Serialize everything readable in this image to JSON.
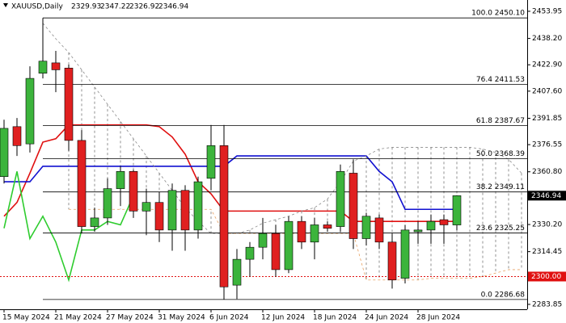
{
  "chart_data": {
    "type": "candlestick",
    "symbol": "XAUUSD,Daily",
    "categories": [
      "15 May 2024",
      null,
      null,
      null,
      "21 May 2024",
      null,
      null,
      null,
      "27 May 2024",
      null,
      null,
      null,
      "31 May 2024",
      null,
      null,
      null,
      "6 Jun 2024",
      null,
      null,
      null,
      "12 Jun 2024",
      null,
      null,
      null,
      "18 Jun 2024",
      null,
      null,
      null,
      "24 Jun 2024",
      null,
      null,
      null,
      "28 Jun 2024",
      null,
      null,
      null,
      null,
      null,
      null,
      null,
      null
    ],
    "open": [
      2358,
      2387,
      2377,
      2418,
      2424,
      2421,
      2379,
      2329,
      2334,
      2351,
      2361,
      2338,
      2343,
      2327,
      2350,
      2327,
      2357,
      2376,
      2295,
      2310,
      2317,
      2325,
      2304,
      2332,
      2320,
      2330,
      2329,
      2360,
      2322,
      2334,
      2320,
      2299,
      2326,
      2327,
      2333,
      2329.93,
      null,
      null,
      null,
      null,
      null
    ],
    "high": [
      2391,
      2392,
      2422,
      2450.1,
      2431,
      2423,
      2385,
      2340,
      2357,
      2364,
      2362,
      2351,
      2349,
      2354,
      2353,
      2358,
      2388,
      2388,
      2316,
      2320,
      2334,
      2330,
      2335,
      2335,
      2334,
      2332,
      2365,
      2368,
      2337,
      2336,
      2325,
      2330,
      2332,
      2336,
      2336,
      2347.22,
      null,
      null,
      null,
      null,
      null
    ],
    "low": [
      2354,
      2370,
      2372,
      2415,
      2407,
      2373,
      2325,
      2326,
      2330,
      2341,
      2334,
      2324,
      2320,
      2315,
      2315,
      2322,
      2350,
      2286.68,
      2287,
      2300,
      2310,
      2300,
      2302,
      2316,
      2310,
      2326,
      2326,
      2316,
      2318,
      2316,
      2293,
      2296,
      2319,
      2319,
      2319,
      2326.92,
      null,
      null,
      null,
      null,
      null
    ],
    "close": [
      2386,
      2376,
      2415,
      2425,
      2420,
      2379,
      2329,
      2334,
      2351,
      2361,
      2338,
      2343,
      2327,
      2350,
      2327,
      2355,
      2376,
      2294,
      2310,
      2317,
      2325,
      2304,
      2332,
      2320,
      2330,
      2328,
      2361,
      2322,
      2335,
      2320,
      2298,
      2327,
      2327,
      2332,
      2330,
      2346.94,
      null,
      null,
      null,
      null,
      null
    ],
    "up_color": "#3cb43c",
    "down_color": "#e02020",
    "series": [
      {
        "color": "#e01010",
        "values": [
          2335,
          2343,
          2360,
          2378,
          2380,
          2388,
          2388,
          2388,
          2388,
          2388,
          2388,
          2388,
          2387,
          2381,
          2371,
          2355,
          2348,
          2338,
          2338,
          2338,
          2338,
          2338,
          2338,
          2338,
          2338,
          2338,
          2338,
          2332,
          2332,
          2332,
          2332,
          2332,
          2332,
          2332,
          2332,
          2332,
          null,
          null,
          null,
          null,
          null
        ]
      },
      {
        "color": "#1010d0",
        "values": [
          2355,
          2355,
          2355,
          2364,
          2364,
          2364,
          2364,
          2364,
          2364,
          2364,
          2364,
          2364,
          2364,
          2364,
          2364,
          2364,
          2364,
          2364,
          2370,
          2370,
          2370,
          2370,
          2370,
          2370,
          2370,
          2370,
          2370,
          2370,
          2370,
          2361,
          2355,
          2339,
          2339,
          2339,
          2339,
          2339,
          null,
          null,
          null,
          null,
          null
        ]
      },
      {
        "color": "#8a8a8a",
        "dashed": true,
        "values": [
          null,
          null,
          null,
          2447,
          2438,
          2430,
          2420,
          2410,
          2400,
          2390,
          2380,
          2370,
          2360,
          2350,
          2340,
          2332,
          2325,
          2325,
          2325,
          2327,
          2331,
          2333,
          2335,
          2338,
          2340,
          2345,
          2355,
          2367,
          2370,
          2374,
          2375,
          2375,
          2375,
          2375,
          2375,
          2375,
          2375,
          2374,
          2372,
          2368,
          2360
        ]
      },
      {
        "color": "#e8a060",
        "dashed": true,
        "values": [
          null,
          null,
          null,
          null,
          null,
          2339,
          2339,
          2339,
          2339,
          2339,
          2339,
          2339,
          2339,
          2339,
          2339,
          2339,
          2339,
          2325,
          2325,
          2325,
          2325,
          2325,
          2325,
          2325,
          2325,
          2325,
          2325,
          2325,
          2298,
          2298,
          2298,
          2298,
          2298,
          2299,
          2299,
          2299,
          2299,
          2300,
          2302,
          2304,
          2304
        ]
      }
    ],
    "lagging_color": "#2ecc2e",
    "fib_levels": [
      {
        "value": 2450.1,
        "label": "100.0 2450.10"
      },
      {
        "value": 2411.53,
        "label": "76.4 2411.53"
      },
      {
        "value": 2387.67,
        "label": "61.8 2387.67"
      },
      {
        "value": 2368.39,
        "label": "50.0 2368.39"
      },
      {
        "value": 2349.11,
        "label": "38.2 2349.11"
      },
      {
        "value": 2325.25,
        "label": "23.6 2325.25"
      },
      {
        "value": 2286.68,
        "label": "0.0 2286.68"
      }
    ],
    "hline": {
      "value": 2300,
      "label": "2300.00",
      "color": "#e01010"
    },
    "ylim": [
      2281.0,
      2460.5
    ],
    "yticks": [
      2453.95,
      {
        "value": 2438.2,
        "label": "2438.20"
      },
      {
        "value": 2422.9,
        "label": "2422.90"
      },
      {
        "value": 2407.6,
        "label": "2407.60"
      },
      2391.85,
      2376.55,
      {
        "value": 2360.8,
        "label": "2360.80"
      },
      {
        "value": 2330.2,
        "label": "2330.20"
      },
      2314.45,
      2283.85
    ]
  }
}
